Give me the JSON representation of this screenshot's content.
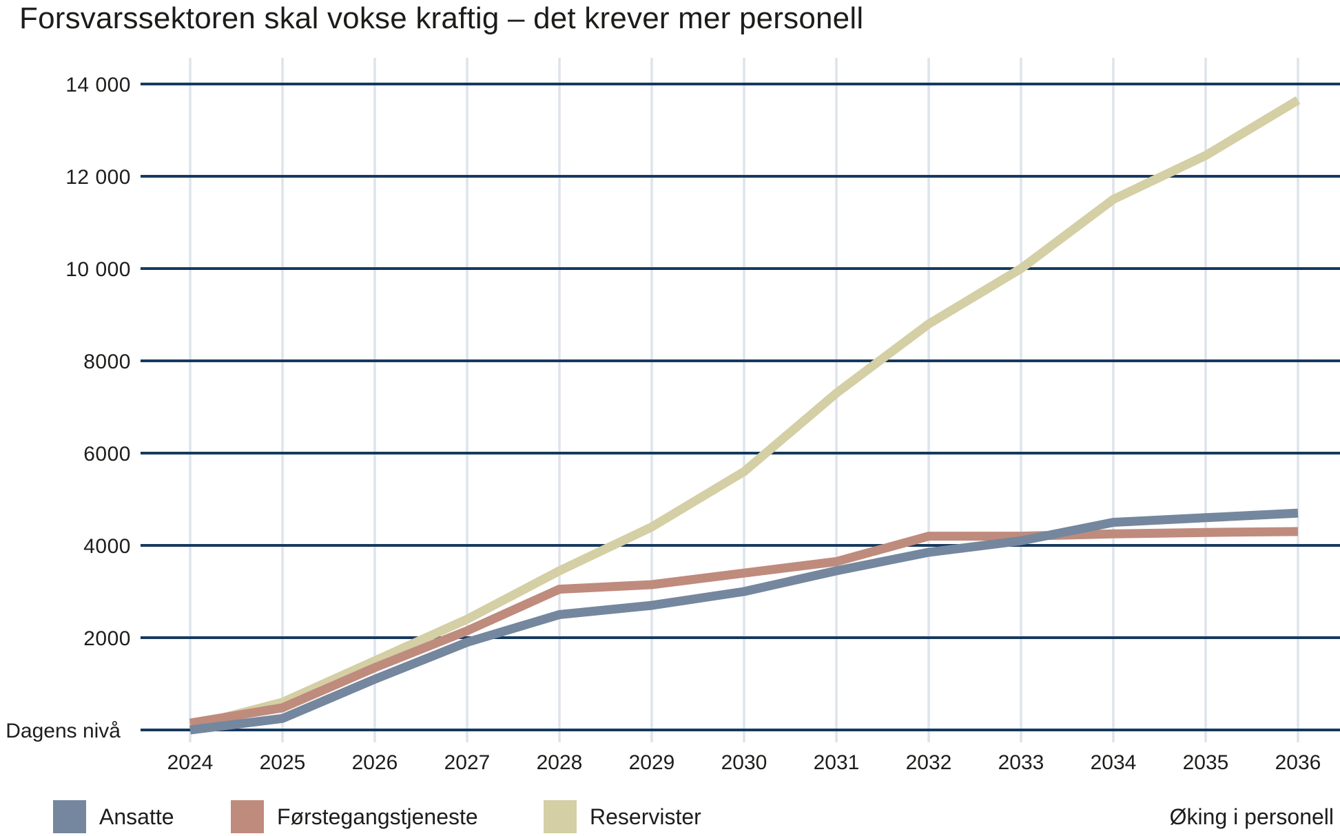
{
  "title": "Forsvarssektoren skal vokse kraftig – det krever mer personell",
  "footnote": "Øking i personell",
  "colors": {
    "background": "#ffffff",
    "text": "#1d1d1b",
    "grid_dark": "#16395e",
    "grid_light": "#dde4ec",
    "ansatte": "#74879e",
    "forstegangstjeneste": "#bf8b7d",
    "reservister": "#d4cfa4"
  },
  "legend": [
    {
      "label": "Ansatte",
      "color": "#74879e"
    },
    {
      "label": "Førstegangstjeneste",
      "color": "#bf8b7d"
    },
    {
      "label": "Reservister",
      "color": "#d4cfa4"
    }
  ],
  "chart_data": {
    "type": "line",
    "title": "Forsvarssektoren skal vokse kraftig – det krever mer personell",
    "x": [
      2024,
      2025,
      2026,
      2027,
      2028,
      2029,
      2030,
      2031,
      2032,
      2033,
      2034,
      2035,
      2036
    ],
    "xlabels": [
      "2024",
      "2025",
      "2026",
      "2027",
      "2028",
      "2029",
      "2030",
      "2031",
      "2032",
      "2033",
      "2034",
      "2035",
      "2036"
    ],
    "series": [
      {
        "name": "Ansatte",
        "color": "#74879e",
        "values": [
          0,
          250,
          1100,
          1900,
          2500,
          2700,
          3000,
          3450,
          3850,
          4100,
          4500,
          4600,
          4700
        ]
      },
      {
        "name": "Førstegangstjeneste",
        "color": "#bf8b7d",
        "values": [
          150,
          480,
          1350,
          2150,
          3050,
          3150,
          3400,
          3650,
          4200,
          4200,
          4250,
          4280,
          4300
        ]
      },
      {
        "name": "Reservister",
        "color": "#d4cfa4",
        "values": [
          80,
          600,
          1500,
          2400,
          3450,
          4400,
          5600,
          7300,
          8800,
          10000,
          11500,
          12450,
          13650
        ]
      }
    ],
    "ylim": [
      0,
      14000
    ],
    "yticks": [
      {
        "value": 2000,
        "label": "2000"
      },
      {
        "value": 4000,
        "label": "4000"
      },
      {
        "value": 6000,
        "label": "6000"
      },
      {
        "value": 8000,
        "label": "8000"
      },
      {
        "value": 10000,
        "label": "10 000"
      },
      {
        "value": 12000,
        "label": "12 000"
      },
      {
        "value": 14000,
        "label": "14 000"
      }
    ],
    "baseline": {
      "value": 0,
      "label": "Dagens nivå"
    },
    "legend_position": "bottom",
    "grid": {
      "horizontal": true,
      "vertical": true
    }
  }
}
